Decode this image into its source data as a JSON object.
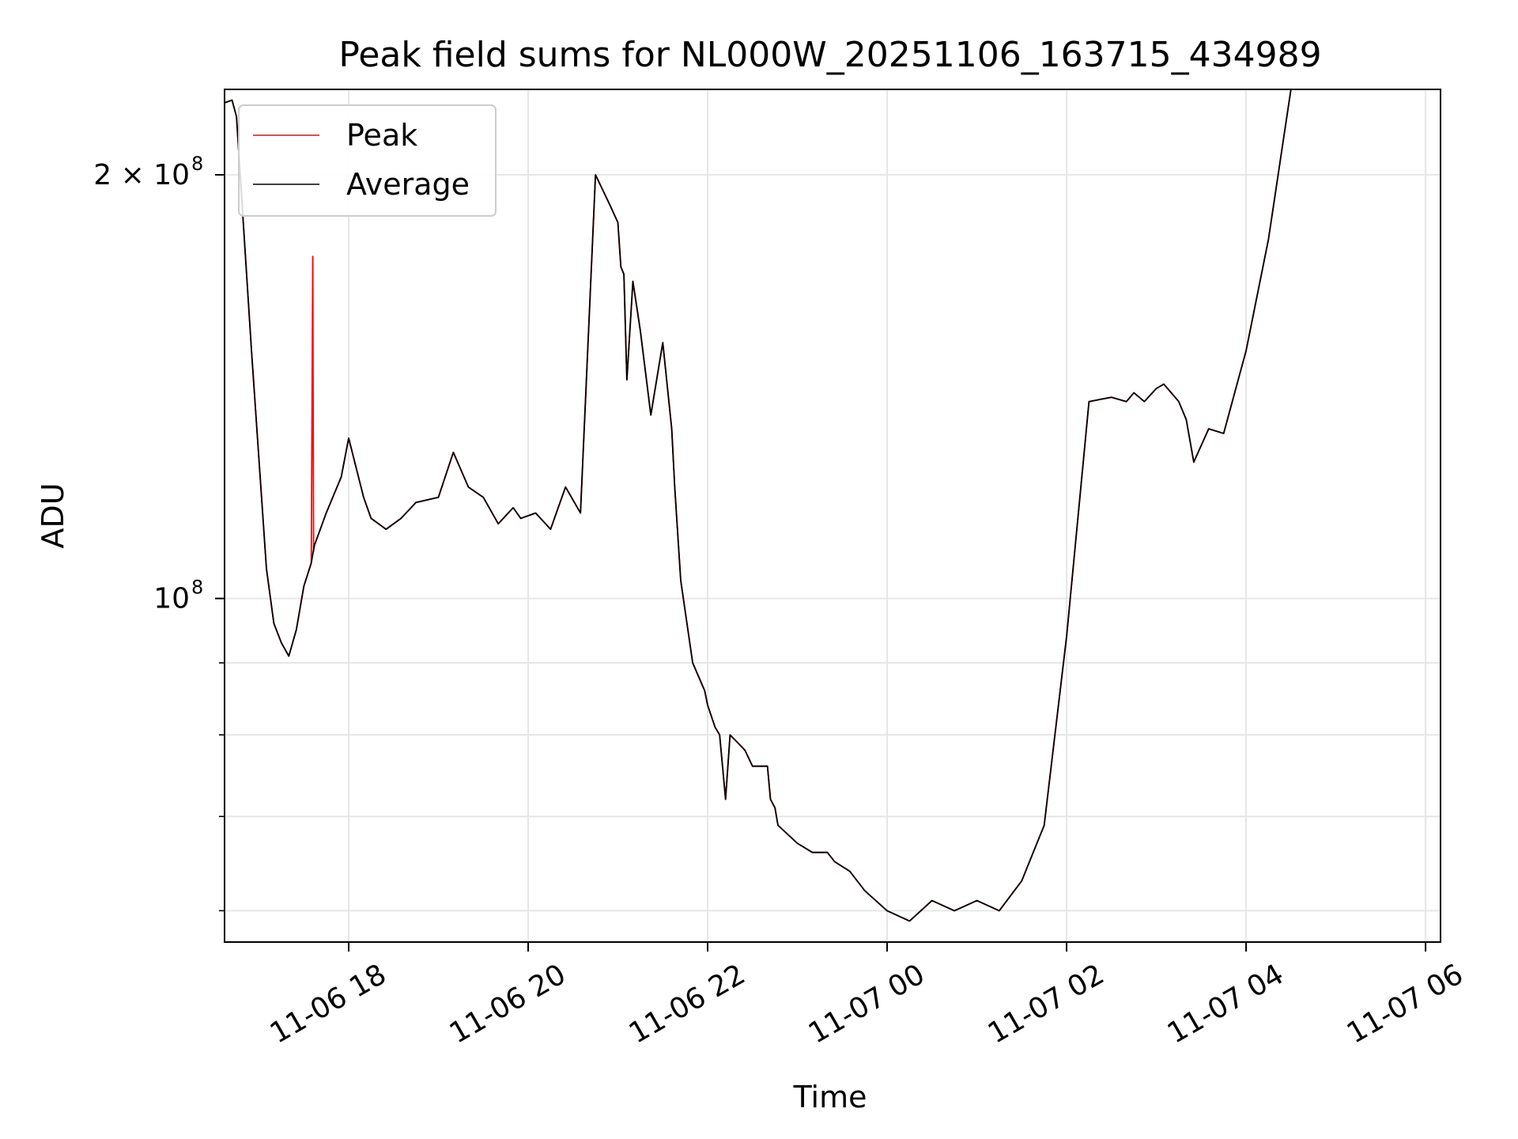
{
  "chart_data": {
    "type": "line",
    "title": "Peak field sums for NL000W_20251106_163715_434989",
    "xlabel": "Time",
    "ylabel": "ADU",
    "y_scale": "log",
    "ylim": [
      57000000,
      230000000
    ],
    "xlim": [
      "2025-11-06T16:37:00",
      "2025-11-07T06:10:00"
    ],
    "grid": true,
    "legend": {
      "placement": "upper-left"
    },
    "x_ticks": [
      "2025-11-06T18:00:00",
      "2025-11-06T20:00:00",
      "2025-11-06T22:00:00",
      "2025-11-07T00:00:00",
      "2025-11-07T02:00:00",
      "2025-11-07T04:00:00",
      "2025-11-07T06:00:00"
    ],
    "x_tick_labels": [
      "11-06 18",
      "11-06 20",
      "11-06 22",
      "11-07 00",
      "11-07 02",
      "11-07 04",
      "11-07 06"
    ],
    "y_major_ticks": [
      {
        "value": 100000000,
        "label_base": "10",
        "label_exp": "8"
      },
      {
        "value": 200000000,
        "label_base": "2 × 10",
        "label_exp": "8"
      }
    ],
    "y_minor_ticks": [
      60000000,
      70000000,
      80000000,
      90000000
    ],
    "series": [
      {
        "name": "Peak",
        "color": "#ff0000",
        "x": [
          "2025-11-06T16:37:00",
          "2025-11-06T16:42:00",
          "2025-11-06T16:45:00",
          "2025-11-06T16:55:00",
          "2025-11-06T17:05:00",
          "2025-11-06T17:10:00",
          "2025-11-06T17:15:00",
          "2025-11-06T17:20:00",
          "2025-11-06T17:25:00",
          "2025-11-06T17:30:00",
          "2025-11-06T17:35:00",
          "2025-11-06T17:36:00",
          "2025-11-06T17:36:30",
          "2025-11-06T17:37:00",
          "2025-11-06T17:45:00",
          "2025-11-06T17:55:00",
          "2025-11-06T18:00:00",
          "2025-11-06T18:10:00",
          "2025-11-06T18:15:00",
          "2025-11-06T18:25:00",
          "2025-11-06T18:35:00",
          "2025-11-06T18:45:00",
          "2025-11-06T19:00:00",
          "2025-11-06T19:10:00",
          "2025-11-06T19:20:00",
          "2025-11-06T19:30:00",
          "2025-11-06T19:40:00",
          "2025-11-06T19:50:00",
          "2025-11-06T19:55:00",
          "2025-11-06T20:05:00",
          "2025-11-06T20:15:00",
          "2025-11-06T20:25:00",
          "2025-11-06T20:35:00",
          "2025-11-06T20:45:00",
          "2025-11-06T20:55:00",
          "2025-11-06T21:00:00",
          "2025-11-06T21:02:00",
          "2025-11-06T21:04:00",
          "2025-11-06T21:06:00",
          "2025-11-06T21:10:00",
          "2025-11-06T21:15:00",
          "2025-11-06T21:22:00",
          "2025-11-06T21:30:00",
          "2025-11-06T21:36:00",
          "2025-11-06T21:38:00",
          "2025-11-06T21:42:00",
          "2025-11-06T21:50:00",
          "2025-11-06T21:58:00",
          "2025-11-06T22:00:00",
          "2025-11-06T22:05:00",
          "2025-11-06T22:08:00",
          "2025-11-06T22:12:00",
          "2025-11-06T22:15:00",
          "2025-11-06T22:20:00",
          "2025-11-06T22:25:00",
          "2025-11-06T22:30:00",
          "2025-11-06T22:40:00",
          "2025-11-06T22:42:00",
          "2025-11-06T22:45:00",
          "2025-11-06T22:47:00",
          "2025-11-06T23:00:00",
          "2025-11-06T23:10:00",
          "2025-11-06T23:20:00",
          "2025-11-06T23:25:00",
          "2025-11-06T23:35:00",
          "2025-11-06T23:45:00",
          "2025-11-07T00:00:00",
          "2025-11-07T00:15:00",
          "2025-11-07T00:30:00",
          "2025-11-07T00:45:00",
          "2025-11-07T01:00:00",
          "2025-11-07T01:15:00",
          "2025-11-07T01:30:00",
          "2025-11-07T01:45:00",
          "2025-11-07T02:00:00",
          "2025-11-07T02:15:00",
          "2025-11-07T02:30:00",
          "2025-11-07T02:40:00",
          "2025-11-07T02:45:00",
          "2025-11-07T02:52:00",
          "2025-11-07T03:00:00",
          "2025-11-07T03:05:00",
          "2025-11-07T03:10:00",
          "2025-11-07T03:15:00",
          "2025-11-07T03:20:00",
          "2025-11-07T03:25:00",
          "2025-11-07T03:35:00",
          "2025-11-07T03:45:00",
          "2025-11-07T04:00:00",
          "2025-11-07T04:15:00",
          "2025-11-07T04:30:00",
          "2025-11-07T04:45:00",
          "2025-11-07T05:00:00",
          "2025-11-07T05:15:00",
          "2025-11-07T05:25:00",
          "2025-11-07T05:35:00",
          "2025-11-07T05:45:00",
          "2025-11-07T05:55:00",
          "2025-11-07T05:58:00"
        ],
        "y": [
          225000000,
          226000000,
          220000000,
          150000000,
          105000000,
          96000000,
          93000000,
          91000000,
          95000000,
          102000000,
          106000000,
          175000000,
          108000000,
          109000000,
          115000000,
          122000000,
          130000000,
          118000000,
          114000000,
          112000000,
          114000000,
          117000000,
          118000000,
          127000000,
          120000000,
          118000000,
          113000000,
          116000000,
          114000000,
          115000000,
          112000000,
          120000000,
          115000000,
          200000000,
          190000000,
          185000000,
          172000000,
          170000000,
          143000000,
          168000000,
          155000000,
          135000000,
          152000000,
          132000000,
          120000000,
          103000000,
          90000000,
          86000000,
          84000000,
          81000000,
          80000000,
          72000000,
          80000000,
          79000000,
          78000000,
          76000000,
          76000000,
          72000000,
          71000000,
          69000000,
          67000000,
          66000000,
          66000000,
          65000000,
          64000000,
          62000000,
          60000000,
          59000000,
          61000000,
          60000000,
          61000000,
          60000000,
          63000000,
          69000000,
          94000000,
          138000000,
          139000000,
          138000000,
          140000000,
          138000000,
          141000000,
          142000000,
          140000000,
          138000000,
          134000000,
          125000000,
          132000000,
          131000000,
          150000000,
          180000000,
          230000000,
          230000000,
          230000000,
          230000000,
          230000000,
          230000000,
          230000000,
          230000000,
          230000000
        ]
      },
      {
        "name": "Average",
        "color": "#000000",
        "x": [
          "2025-11-06T16:37:00",
          "2025-11-06T16:42:00",
          "2025-11-06T16:45:00",
          "2025-11-06T16:55:00",
          "2025-11-06T17:05:00",
          "2025-11-06T17:10:00",
          "2025-11-06T17:15:00",
          "2025-11-06T17:20:00",
          "2025-11-06T17:25:00",
          "2025-11-06T17:30:00",
          "2025-11-06T17:35:00",
          "2025-11-06T17:37:00",
          "2025-11-06T17:45:00",
          "2025-11-06T17:55:00",
          "2025-11-06T18:00:00",
          "2025-11-06T18:10:00",
          "2025-11-06T18:15:00",
          "2025-11-06T18:25:00",
          "2025-11-06T18:35:00",
          "2025-11-06T18:45:00",
          "2025-11-06T19:00:00",
          "2025-11-06T19:10:00",
          "2025-11-06T19:20:00",
          "2025-11-06T19:30:00",
          "2025-11-06T19:40:00",
          "2025-11-06T19:50:00",
          "2025-11-06T19:55:00",
          "2025-11-06T20:05:00",
          "2025-11-06T20:15:00",
          "2025-11-06T20:25:00",
          "2025-11-06T20:35:00",
          "2025-11-06T20:45:00",
          "2025-11-06T20:55:00",
          "2025-11-06T21:00:00",
          "2025-11-06T21:02:00",
          "2025-11-06T21:04:00",
          "2025-11-06T21:06:00",
          "2025-11-06T21:10:00",
          "2025-11-06T21:15:00",
          "2025-11-06T21:22:00",
          "2025-11-06T21:30:00",
          "2025-11-06T21:36:00",
          "2025-11-06T21:38:00",
          "2025-11-06T21:42:00",
          "2025-11-06T21:50:00",
          "2025-11-06T21:58:00",
          "2025-11-06T22:00:00",
          "2025-11-06T22:05:00",
          "2025-11-06T22:08:00",
          "2025-11-06T22:12:00",
          "2025-11-06T22:15:00",
          "2025-11-06T22:20:00",
          "2025-11-06T22:25:00",
          "2025-11-06T22:30:00",
          "2025-11-06T22:40:00",
          "2025-11-06T22:42:00",
          "2025-11-06T22:45:00",
          "2025-11-06T22:47:00",
          "2025-11-06T23:00:00",
          "2025-11-06T23:10:00",
          "2025-11-06T23:20:00",
          "2025-11-06T23:25:00",
          "2025-11-06T23:35:00",
          "2025-11-06T23:45:00",
          "2025-11-07T00:00:00",
          "2025-11-07T00:15:00",
          "2025-11-07T00:30:00",
          "2025-11-07T00:45:00",
          "2025-11-07T01:00:00",
          "2025-11-07T01:15:00",
          "2025-11-07T01:30:00",
          "2025-11-07T01:45:00",
          "2025-11-07T02:00:00",
          "2025-11-07T02:15:00",
          "2025-11-07T02:30:00",
          "2025-11-07T02:40:00",
          "2025-11-07T02:45:00",
          "2025-11-07T02:52:00",
          "2025-11-07T03:00:00",
          "2025-11-07T03:05:00",
          "2025-11-07T03:10:00",
          "2025-11-07T03:15:00",
          "2025-11-07T03:20:00",
          "2025-11-07T03:25:00",
          "2025-11-07T03:35:00",
          "2025-11-07T03:45:00",
          "2025-11-07T04:00:00",
          "2025-11-07T04:15:00",
          "2025-11-07T04:30:00",
          "2025-11-07T04:45:00",
          "2025-11-07T05:00:00",
          "2025-11-07T05:15:00",
          "2025-11-07T05:25:00",
          "2025-11-07T05:35:00",
          "2025-11-07T05:45:00",
          "2025-11-07T05:55:00",
          "2025-11-07T05:58:00"
        ],
        "y": [
          225000000,
          226000000,
          220000000,
          150000000,
          105000000,
          96000000,
          93000000,
          91000000,
          95000000,
          102000000,
          106000000,
          109000000,
          115000000,
          122000000,
          130000000,
          118000000,
          114000000,
          112000000,
          114000000,
          117000000,
          118000000,
          127000000,
          120000000,
          118000000,
          113000000,
          116000000,
          114000000,
          115000000,
          112000000,
          120000000,
          115000000,
          200000000,
          190000000,
          185000000,
          172000000,
          170000000,
          143000000,
          168000000,
          155000000,
          135000000,
          152000000,
          132000000,
          120000000,
          103000000,
          90000000,
          86000000,
          84000000,
          81000000,
          80000000,
          72000000,
          80000000,
          79000000,
          78000000,
          76000000,
          76000000,
          72000000,
          71000000,
          69000000,
          67000000,
          66000000,
          66000000,
          65000000,
          64000000,
          62000000,
          60000000,
          59000000,
          61000000,
          60000000,
          61000000,
          60000000,
          63000000,
          69000000,
          94000000,
          138000000,
          139000000,
          138000000,
          140000000,
          138000000,
          141000000,
          142000000,
          140000000,
          138000000,
          134000000,
          125000000,
          132000000,
          131000000,
          150000000,
          180000000,
          230000000,
          230000000,
          230000000,
          230000000,
          230000000,
          230000000,
          230000000,
          230000000,
          230000000
        ]
      }
    ]
  }
}
